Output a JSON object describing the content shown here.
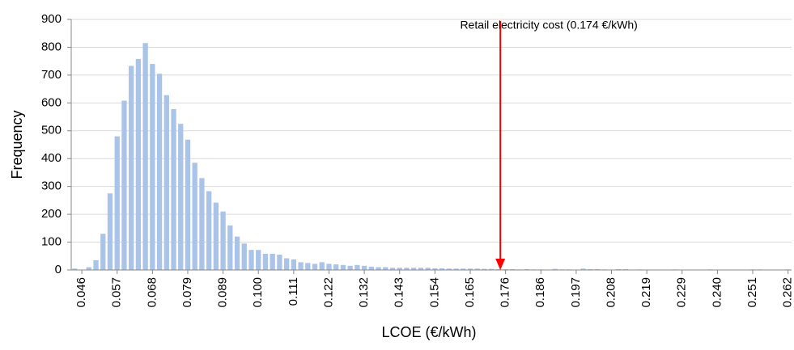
{
  "chart_data": {
    "type": "bar",
    "x_label": "LCOE (€/kWh)",
    "y_label": "Frequency",
    "categories": [
      null,
      "0.046",
      null,
      null,
      null,
      null,
      "0.057",
      null,
      null,
      null,
      null,
      "0.068",
      null,
      null,
      null,
      null,
      "0.079",
      null,
      null,
      null,
      null,
      "0.089",
      null,
      null,
      null,
      null,
      "0.100",
      null,
      null,
      null,
      null,
      "0.111",
      null,
      null,
      null,
      null,
      "0.122",
      null,
      null,
      null,
      null,
      "0.132",
      null,
      null,
      null,
      null,
      "0.143",
      null,
      null,
      null,
      null,
      "0.154",
      null,
      null,
      null,
      null,
      "0.165",
      null,
      null,
      null,
      null,
      "0.176",
      null,
      null,
      null,
      null,
      "0.186",
      null,
      null,
      null,
      null,
      "0.197",
      null,
      null,
      null,
      null,
      "0.208",
      null,
      null,
      null,
      null,
      "0.219",
      null,
      null,
      null,
      null,
      "0.229",
      null,
      null,
      null,
      null,
      "0.240",
      null,
      null,
      null,
      null,
      "0.251",
      null,
      null,
      null,
      null,
      "0.262"
    ],
    "values": [
      5,
      0,
      10,
      35,
      130,
      275,
      480,
      608,
      733,
      758,
      815,
      740,
      705,
      628,
      578,
      525,
      468,
      385,
      330,
      283,
      242,
      210,
      160,
      120,
      95,
      72,
      72,
      58,
      58,
      55,
      42,
      38,
      28,
      25,
      22,
      28,
      22,
      20,
      18,
      15,
      18,
      15,
      12,
      10,
      10,
      8,
      8,
      8,
      8,
      8,
      8,
      6,
      6,
      5,
      5,
      5,
      5,
      5,
      4,
      4,
      3,
      3,
      3,
      2,
      3,
      2,
      2,
      0,
      4,
      2,
      2,
      0,
      5,
      3,
      3,
      2,
      0,
      3,
      3,
      0,
      2,
      0,
      0,
      0,
      0,
      2,
      0,
      0,
      0,
      0,
      2,
      0,
      0,
      0,
      0,
      0,
      2,
      2,
      0,
      0,
      0,
      2
    ],
    "color": "#a9c4e8",
    "ylim": [
      0,
      900
    ],
    "yticks": [
      0,
      100,
      200,
      300,
      400,
      500,
      600,
      700,
      800,
      900
    ],
    "grid": true,
    "annotation": {
      "text": "Retail electricity cost (0.174 €/kWh)",
      "value": 0.174,
      "color": "#ff0000"
    }
  }
}
